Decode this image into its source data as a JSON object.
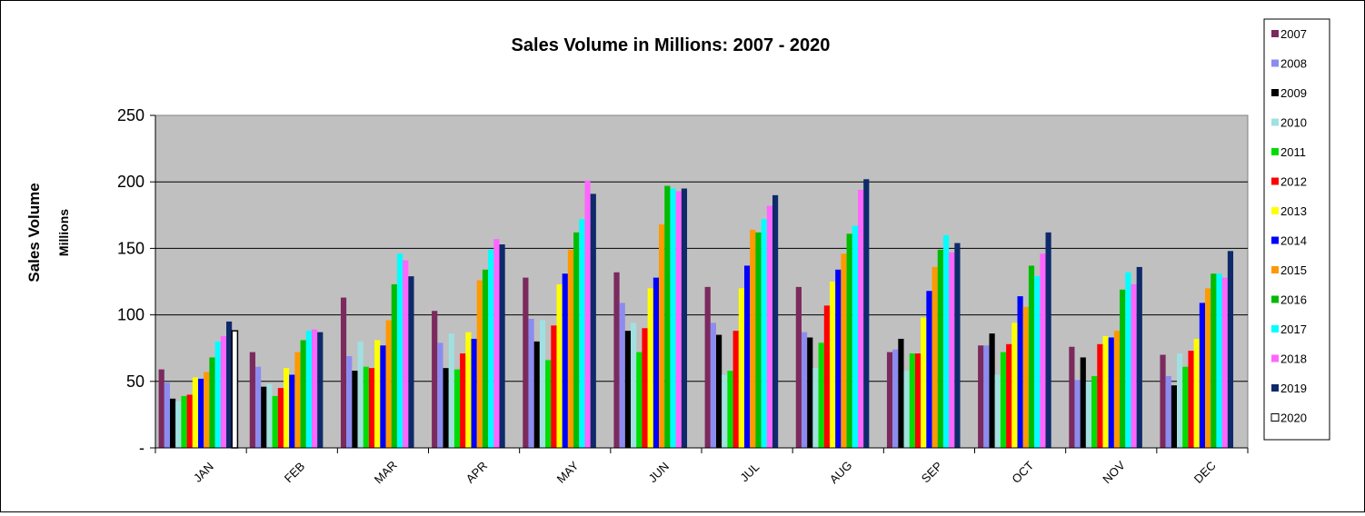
{
  "chart_data": {
    "type": "bar",
    "title": "Sales Volume in Millions: 2007 - 2020",
    "ylabel": "Sales Volume",
    "ylabel_secondary": "Millions",
    "xlabel": "",
    "ylim": [
      0,
      250
    ],
    "yticks": [
      0,
      50,
      100,
      150,
      200,
      250
    ],
    "ytick_labels": [
      "-",
      "50",
      "100",
      "150",
      "200",
      "250"
    ],
    "grid": true,
    "legend_position": "right",
    "plot_background": "#C0C0C0",
    "categories": [
      "JAN",
      "FEB",
      "MAR",
      "APR",
      "MAY",
      "JUN",
      "JUL",
      "AUG",
      "SEP",
      "OCT",
      "NOV",
      "DEC"
    ],
    "series": [
      {
        "name": "2007",
        "color": "#7B2A5E",
        "values": [
          59,
          72,
          113,
          103,
          128,
          132,
          121,
          121,
          72,
          77,
          76,
          70
        ]
      },
      {
        "name": "2008",
        "color": "#8C8CF0",
        "values": [
          49,
          61,
          69,
          79,
          97,
          109,
          94,
          87,
          74,
          77,
          51,
          54
        ]
      },
      {
        "name": "2009",
        "color": "#000000",
        "values": [
          37,
          46,
          58,
          60,
          80,
          88,
          85,
          83,
          82,
          86,
          68,
          47
        ]
      },
      {
        "name": "2010",
        "color": "#A0E0E0",
        "values": [
          35,
          48,
          80,
          86,
          96,
          94,
          55,
          60,
          58,
          55,
          50,
          71
        ]
      },
      {
        "name": "2011",
        "color": "#00DD00",
        "values": [
          39,
          39,
          61,
          59,
          66,
          72,
          58,
          79,
          71,
          72,
          54,
          61
        ]
      },
      {
        "name": "2012",
        "color": "#FF0000",
        "values": [
          40,
          45,
          60,
          71,
          92,
          90,
          88,
          107,
          71,
          78,
          78,
          73
        ]
      },
      {
        "name": "2013",
        "color": "#FFFF00",
        "values": [
          53,
          60,
          81,
          87,
          123,
          120,
          120,
          125,
          98,
          94,
          84,
          82
        ]
      },
      {
        "name": "2014",
        "color": "#0000FF",
        "values": [
          52,
          55,
          77,
          82,
          131,
          128,
          137,
          134,
          118,
          114,
          83,
          109
        ]
      },
      {
        "name": "2015",
        "color": "#FF9900",
        "values": [
          57,
          72,
          96,
          126,
          149,
          168,
          164,
          146,
          136,
          106,
          88,
          120
        ]
      },
      {
        "name": "2016",
        "color": "#00BB00",
        "values": [
          68,
          81,
          123,
          134,
          162,
          197,
          162,
          161,
          149,
          137,
          119,
          131
        ]
      },
      {
        "name": "2017",
        "color": "#00FFFF",
        "values": [
          80,
          88,
          146,
          149,
          172,
          195,
          172,
          167,
          160,
          129,
          132,
          131
        ]
      },
      {
        "name": "2018",
        "color": "#FF66FF",
        "values": [
          84,
          89,
          141,
          157,
          201,
          193,
          182,
          194,
          147,
          146,
          123,
          128
        ]
      },
      {
        "name": "2019",
        "color": "#0F2A6B",
        "values": [
          95,
          87,
          129,
          153,
          191,
          195,
          190,
          202,
          154,
          162,
          136,
          148
        ]
      },
      {
        "name": "2020",
        "color": "#FFFFFF",
        "values": [
          88,
          null,
          null,
          null,
          null,
          null,
          null,
          null,
          null,
          null,
          null,
          null
        ]
      }
    ]
  }
}
